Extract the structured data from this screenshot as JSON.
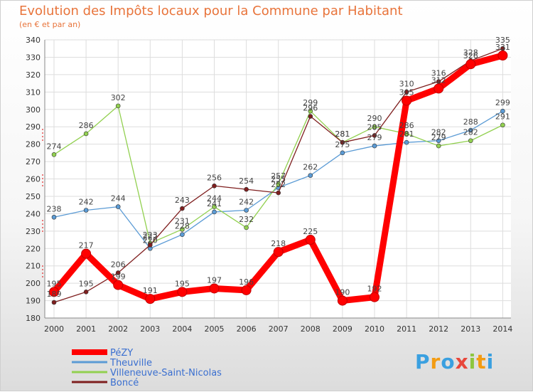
{
  "chart_data": {
    "type": "line",
    "title": "Evolution des Impôts locaux pour la Commune par Habitant",
    "subtitle": "(en € et par an)",
    "xlabel": "",
    "ylabel": "",
    "ylim": [
      180,
      340
    ],
    "yticks": [
      180,
      190,
      200,
      210,
      220,
      230,
      240,
      250,
      260,
      270,
      280,
      290,
      300,
      310,
      320,
      330,
      340
    ],
    "grid": true,
    "legend_position": "bottom-left",
    "categories": [
      "2000",
      "2001",
      "2002",
      "2003",
      "2004",
      "2005",
      "2006",
      "2007",
      "2008",
      "2009",
      "2010",
      "2011",
      "2012",
      "2013",
      "2014"
    ],
    "series": [
      {
        "name": "PéZY",
        "color": "#ff0000",
        "values": [
          195,
          217,
          199,
          191,
          195,
          197,
          196,
          218,
          225,
          190,
          192,
          305,
          312,
          326,
          331
        ]
      },
      {
        "name": "Theuville",
        "color": "#5b9bd5",
        "values": [
          238,
          242,
          244,
          220,
          228,
          241,
          242,
          255,
          262,
          275,
          279,
          281,
          282,
          288,
          299
        ]
      },
      {
        "name": "Villeneuve-Saint-Nicolas",
        "color": "#92d050",
        "values": [
          274,
          286,
          302,
          223,
          231,
          244,
          232,
          257,
          299,
          281,
          290,
          286,
          279,
          282,
          291
        ]
      },
      {
        "name": "Boncé",
        "color": "#7f1f1f",
        "values": [
          189,
          195,
          206,
          222,
          243,
          256,
          254,
          252,
          296,
          281,
          285,
          310,
          316,
          328,
          335
        ]
      }
    ]
  },
  "logo": {
    "text": "Proxiti",
    "letters": [
      "P",
      "r",
      "o",
      "x",
      "i",
      "t",
      "i"
    ],
    "colors": [
      "#3aa0e0",
      "#f39c12",
      "#3aa0e0",
      "#e8473b",
      "#8dc63f",
      "#f39c12",
      "#3aa0e0"
    ]
  }
}
